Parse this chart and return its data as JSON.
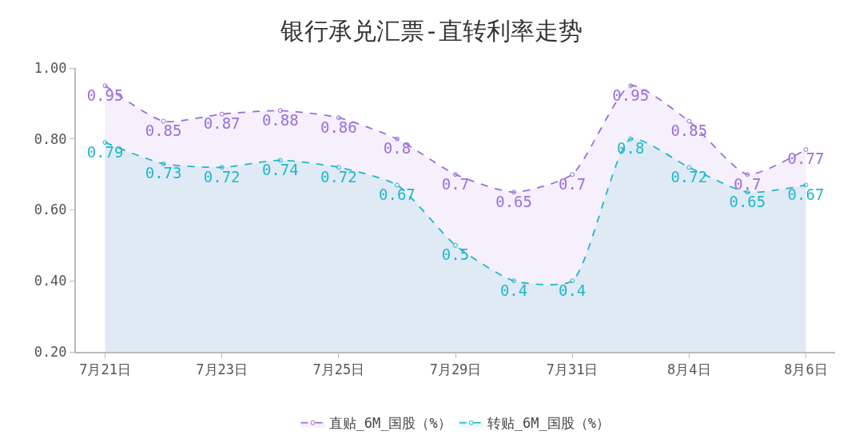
{
  "chart_data": {
    "type": "area",
    "title": "银行承兑汇票-直转利率走势",
    "categories": [
      "7月21日",
      null,
      "7月23日",
      null,
      "7月25日",
      null,
      "7月29日",
      null,
      "7月31日",
      null,
      "8月4日",
      null,
      "8月6日"
    ],
    "series": [
      {
        "name": "直贴_6M_国股（%）",
        "color": "#9b6fdc",
        "values": [
          0.95,
          0.85,
          0.87,
          0.88,
          0.86,
          0.8,
          0.7,
          0.65,
          0.7,
          0.95,
          0.85,
          0.7,
          0.77
        ]
      },
      {
        "name": "转贴_6M_国股（%）",
        "color": "#1fb8c9",
        "values": [
          0.79,
          0.73,
          0.72,
          0.74,
          0.72,
          0.67,
          0.5,
          0.4,
          0.4,
          0.8,
          0.72,
          0.65,
          0.67
        ]
      }
    ],
    "ylim": [
      0.2,
      1.0
    ],
    "yticks": [
      {
        "value": 0.2,
        "label": "0.20"
      },
      {
        "value": 0.4,
        "label": "0.40"
      },
      {
        "value": 0.6,
        "label": "0.60"
      },
      {
        "value": 0.8,
        "label": "0.80"
      },
      {
        "value": 1.0,
        "label": "1.00"
      }
    ],
    "legend": "bottom",
    "marker": "circle",
    "line_style": "dashed",
    "data_labels": true
  }
}
